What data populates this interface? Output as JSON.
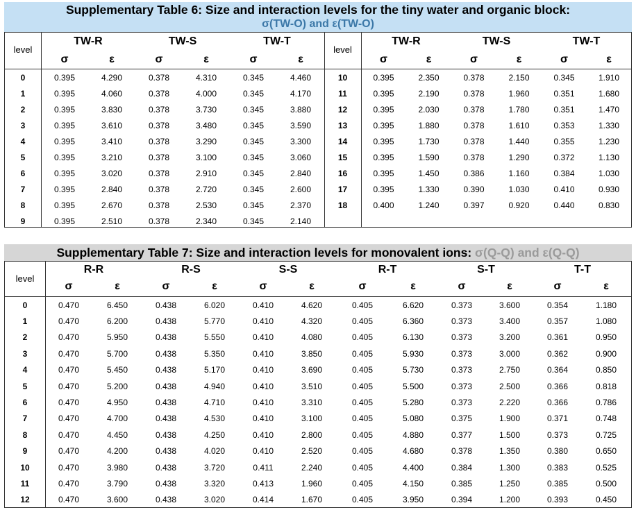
{
  "table6": {
    "caption_line1": "Supplementary Table 6: Size and interaction levels for the tiny water and organic block:",
    "caption_line2": "σ(TW-O) and ε(TW-O)",
    "level_label": "level",
    "groups": [
      "TW-R",
      "TW-S",
      "TW-T"
    ],
    "sigma": "σ",
    "epsilon": "ε",
    "left_rows": [
      [
        "0",
        "0.395",
        "4.290",
        "0.378",
        "4.310",
        "0.345",
        "4.460"
      ],
      [
        "1",
        "0.395",
        "4.060",
        "0.378",
        "4.000",
        "0.345",
        "4.170"
      ],
      [
        "2",
        "0.395",
        "3.830",
        "0.378",
        "3.730",
        "0.345",
        "3.880"
      ],
      [
        "3",
        "0.395",
        "3.610",
        "0.378",
        "3.480",
        "0.345",
        "3.590"
      ],
      [
        "4",
        "0.395",
        "3.410",
        "0.378",
        "3.290",
        "0.345",
        "3.300"
      ],
      [
        "5",
        "0.395",
        "3.210",
        "0.378",
        "3.100",
        "0.345",
        "3.060"
      ],
      [
        "6",
        "0.395",
        "3.020",
        "0.378",
        "2.910",
        "0.345",
        "2.840"
      ],
      [
        "7",
        "0.395",
        "2.840",
        "0.378",
        "2.720",
        "0.345",
        "2.600"
      ],
      [
        "8",
        "0.395",
        "2.670",
        "0.378",
        "2.530",
        "0.345",
        "2.370"
      ],
      [
        "9",
        "0.395",
        "2.510",
        "0.378",
        "2.340",
        "0.345",
        "2.140"
      ]
    ],
    "right_rows": [
      [
        "10",
        "0.395",
        "2.350",
        "0.378",
        "2.150",
        "0.345",
        "1.910"
      ],
      [
        "11",
        "0.395",
        "2.190",
        "0.378",
        "1.960",
        "0.351",
        "1.680"
      ],
      [
        "12",
        "0.395",
        "2.030",
        "0.378",
        "1.780",
        "0.351",
        "1.470"
      ],
      [
        "13",
        "0.395",
        "1.880",
        "0.378",
        "1.610",
        "0.353",
        "1.330"
      ],
      [
        "14",
        "0.395",
        "1.730",
        "0.378",
        "1.440",
        "0.355",
        "1.230"
      ],
      [
        "15",
        "0.395",
        "1.590",
        "0.378",
        "1.290",
        "0.372",
        "1.130"
      ],
      [
        "16",
        "0.395",
        "1.450",
        "0.386",
        "1.160",
        "0.384",
        "1.030"
      ],
      [
        "17",
        "0.395",
        "1.330",
        "0.390",
        "1.030",
        "0.410",
        "0.930"
      ],
      [
        "18",
        "0.400",
        "1.240",
        "0.397",
        "0.920",
        "0.440",
        "0.830"
      ]
    ]
  },
  "table7": {
    "caption_main": "Supplementary Table 7: Size and interaction levels for monovalent ions: ",
    "caption_gray": "σ(Q-Q) and ε(Q-Q)",
    "level_label": "level",
    "groups": [
      "R-R",
      "R-S",
      "S-S",
      "R-T",
      "S-T",
      "T-T"
    ],
    "sigma": "σ",
    "epsilon": "ε",
    "rows": [
      [
        "0",
        "0.470",
        "6.450",
        "0.438",
        "6.020",
        "0.410",
        "4.620",
        "0.405",
        "6.620",
        "0.373",
        "3.600",
        "0.354",
        "1.180"
      ],
      [
        "1",
        "0.470",
        "6.200",
        "0.438",
        "5.770",
        "0.410",
        "4.320",
        "0.405",
        "6.360",
        "0.373",
        "3.400",
        "0.357",
        "1.080"
      ],
      [
        "2",
        "0.470",
        "5.950",
        "0.438",
        "5.550",
        "0.410",
        "4.080",
        "0.405",
        "6.130",
        "0.373",
        "3.200",
        "0.361",
        "0.950"
      ],
      [
        "3",
        "0.470",
        "5.700",
        "0.438",
        "5.350",
        "0.410",
        "3.850",
        "0.405",
        "5.930",
        "0.373",
        "3.000",
        "0.362",
        "0.900"
      ],
      [
        "4",
        "0.470",
        "5.450",
        "0.438",
        "5.170",
        "0.410",
        "3.690",
        "0.405",
        "5.730",
        "0.373",
        "2.750",
        "0.364",
        "0.850"
      ],
      [
        "5",
        "0.470",
        "5.200",
        "0.438",
        "4.940",
        "0.410",
        "3.510",
        "0.405",
        "5.500",
        "0.373",
        "2.500",
        "0.366",
        "0.818"
      ],
      [
        "6",
        "0.470",
        "4.950",
        "0.438",
        "4.710",
        "0.410",
        "3.310",
        "0.405",
        "5.280",
        "0.373",
        "2.220",
        "0.366",
        "0.786"
      ],
      [
        "7",
        "0.470",
        "4.700",
        "0.438",
        "4.530",
        "0.410",
        "3.100",
        "0.405",
        "5.080",
        "0.375",
        "1.900",
        "0.371",
        "0.748"
      ],
      [
        "8",
        "0.470",
        "4.450",
        "0.438",
        "4.250",
        "0.410",
        "2.800",
        "0.405",
        "4.880",
        "0.377",
        "1.500",
        "0.373",
        "0.725"
      ],
      [
        "9",
        "0.470",
        "4.200",
        "0.438",
        "4.020",
        "0.410",
        "2.520",
        "0.405",
        "4.680",
        "0.378",
        "1.350",
        "0.380",
        "0.650"
      ],
      [
        "10",
        "0.470",
        "3.980",
        "0.438",
        "3.720",
        "0.411",
        "2.240",
        "0.405",
        "4.400",
        "0.384",
        "1.300",
        "0.383",
        "0.525"
      ],
      [
        "11",
        "0.470",
        "3.790",
        "0.438",
        "3.320",
        "0.413",
        "1.960",
        "0.405",
        "4.150",
        "0.385",
        "1.250",
        "0.385",
        "0.500"
      ],
      [
        "12",
        "0.470",
        "3.600",
        "0.438",
        "3.020",
        "0.414",
        "1.670",
        "0.405",
        "3.950",
        "0.394",
        "1.200",
        "0.393",
        "0.450"
      ]
    ]
  }
}
